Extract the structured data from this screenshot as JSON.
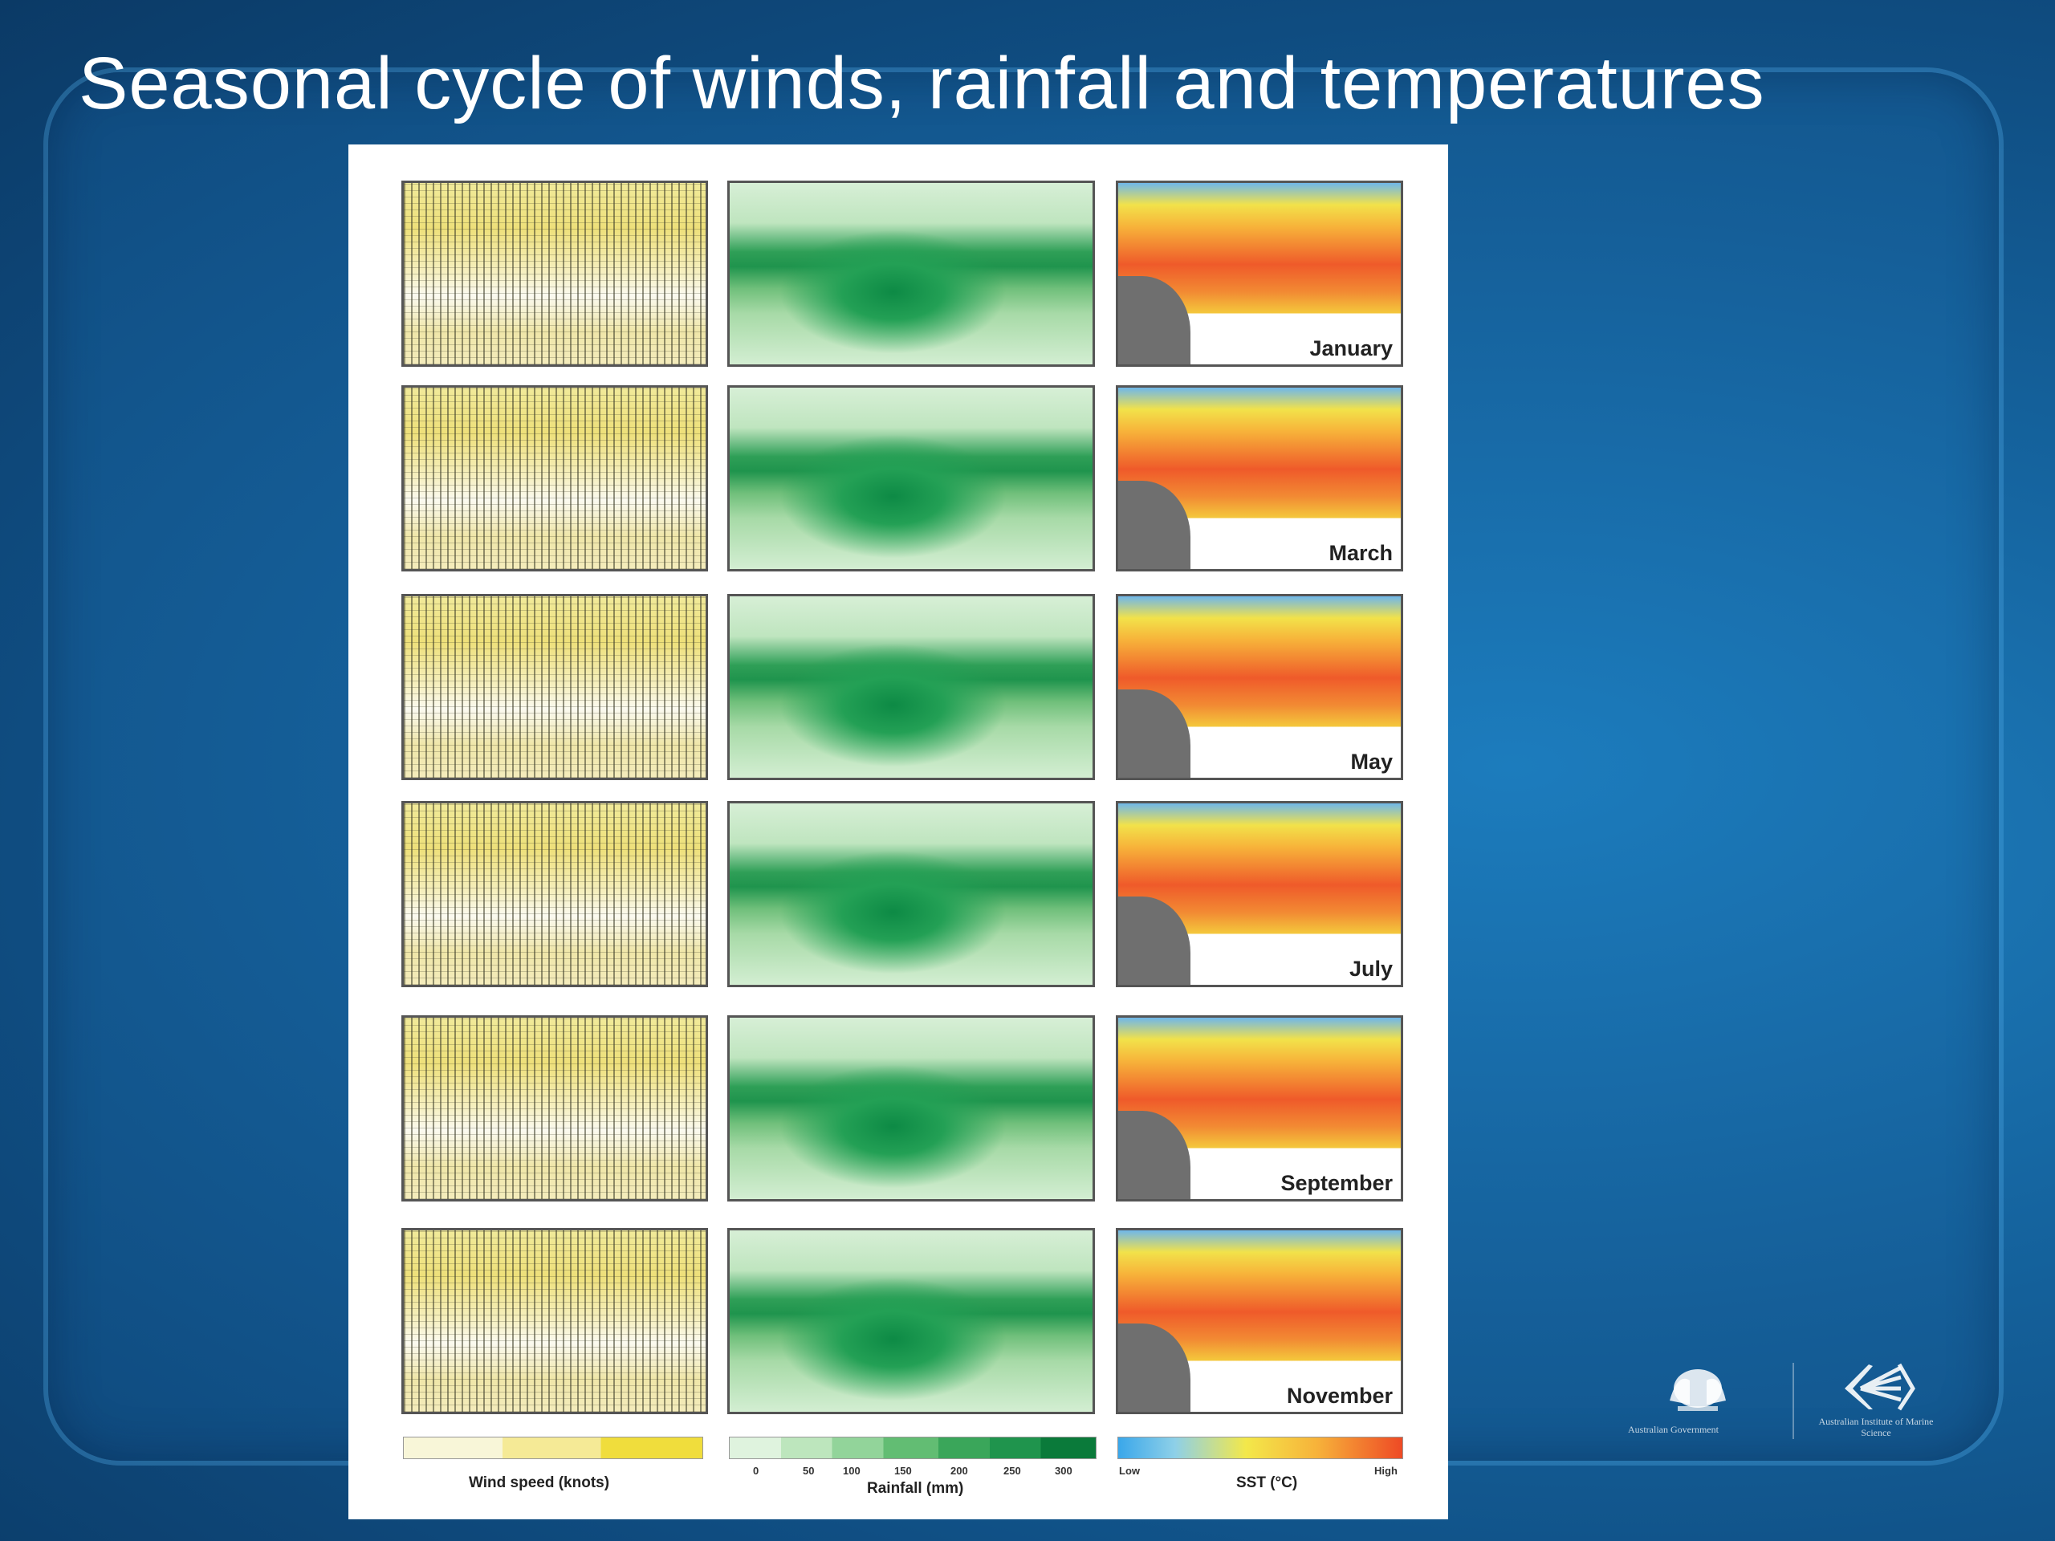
{
  "slide": {
    "title": "Seasonal cycle of winds, rainfall and temperatures"
  },
  "figure": {
    "months": [
      "January",
      "March",
      "May",
      "July",
      "September",
      "November"
    ],
    "columns": [
      {
        "name": "wind",
        "legend_label": "Wind speed (knots)"
      },
      {
        "name": "rainfall",
        "legend_label": "Rainfall (mm)",
        "ticks": [
          "0",
          "50",
          "100",
          "150",
          "200",
          "250",
          "300"
        ]
      },
      {
        "name": "sst",
        "legend_label": "SST (°C)",
        "low_label": "Low",
        "high_label": "High"
      }
    ]
  },
  "logos": [
    {
      "name": "australian-government",
      "text": "Australian Government"
    },
    {
      "name": "aims",
      "text": "Australian Institute of Marine Science"
    }
  ],
  "colors": {
    "background": "#15649f",
    "title": "#ffffff",
    "wind_high": "#f0dd3c",
    "rain_high": "#0a7a3a",
    "sst_low": "#3aa7ea",
    "sst_high": "#ee4a25",
    "land": "#6f6f6f"
  }
}
